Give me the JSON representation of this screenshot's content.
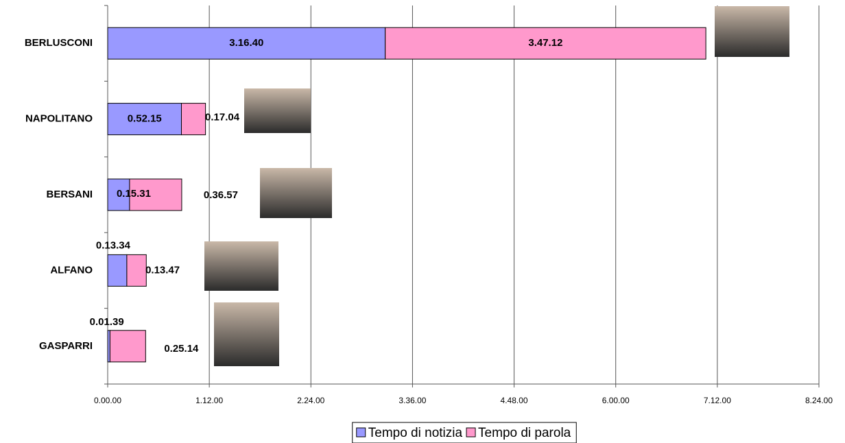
{
  "chart_data": {
    "type": "bar",
    "orientation": "horizontal",
    "stacked": true,
    "categories": [
      "BERLUSCONI",
      "NAPOLITANO",
      "BERSANI",
      "ALFANO",
      "GASPARRI"
    ],
    "series": [
      {
        "name": "Tempo di notizia",
        "color": "#9999ff",
        "values": [
          11800,
          3135,
          931,
          814,
          99
        ],
        "value_labels": [
          "3.16.40",
          "0.52.15",
          "0.15.31",
          "0.13.34",
          "0.01.39"
        ]
      },
      {
        "name": "Tempo di parola",
        "color": "#ff99cc",
        "values": [
          13632,
          1024,
          2217,
          827,
          1514
        ],
        "value_labels": [
          "3.47.12",
          "0.17.04",
          "0.36.57",
          "0.13.47",
          "0.25.14"
        ]
      }
    ],
    "xlim": [
      0,
      30240
    ],
    "xticks": [
      {
        "value": 0,
        "label": "0.00.00"
      },
      {
        "value": 4320,
        "label": "1.12.00"
      },
      {
        "value": 8640,
        "label": "2.24.00"
      },
      {
        "value": 12960,
        "label": "3.36.00"
      },
      {
        "value": 17280,
        "label": "4.48.00"
      },
      {
        "value": 21600,
        "label": "6.00.00"
      },
      {
        "value": 25920,
        "label": "7.12.00"
      },
      {
        "value": 30240,
        "label": "8.24.00"
      }
    ],
    "grid": true,
    "legend": "bottom"
  }
}
